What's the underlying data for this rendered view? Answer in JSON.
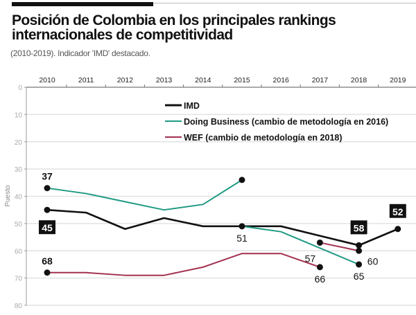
{
  "chart_data": {
    "type": "line",
    "title": "Posición de Colombia en los principales rankings internacionales de competitividad",
    "subtitle": "(2010-2019). Indicador 'IMD' destacado.",
    "ylabel": "Puesto",
    "xlabel": "",
    "x": [
      2010,
      2011,
      2012,
      2013,
      2014,
      2015,
      2016,
      2017,
      2018,
      2019
    ],
    "x_tick_labels": [
      "2010",
      "2011",
      "2012",
      "2013",
      "2014",
      "2015",
      "2016",
      "2017",
      "2018",
      "2019"
    ],
    "ylim": [
      0,
      80
    ],
    "y_inverted": true,
    "y_ticks": [
      0,
      10,
      20,
      30,
      40,
      50,
      60,
      70,
      80
    ],
    "y_tick_labels": [
      "0",
      "10",
      "20",
      "30",
      "40",
      "50",
      "60",
      "70",
      "80"
    ],
    "x_axis_position": "top",
    "grid": true,
    "legend_placement": "top-center",
    "series": [
      {
        "name": "IMD",
        "color": "#111111",
        "segments": [
          {
            "x": [
              2010,
              2011,
              2012,
              2013,
              2014,
              2015,
              2016,
              2017,
              2018,
              2019
            ],
            "values": [
              45,
              46,
              52,
              48,
              51,
              51,
              51,
              54.5,
              58,
              52
            ]
          }
        ]
      },
      {
        "name": "Doing Business (cambio de metodología en 2016)",
        "color": "#1f9a82",
        "segments": [
          {
            "x": [
              2010,
              2011,
              2012,
              2013,
              2014,
              2015
            ],
            "values": [
              37,
              39,
              42,
              45,
              43,
              34
            ]
          },
          {
            "x": [
              2015,
              2016,
              2017,
              2018
            ],
            "values": [
              51,
              53,
              59,
              65
            ]
          }
        ]
      },
      {
        "name": "WEF (cambio de metodología en 2018)",
        "color": "#a3304f",
        "segments": [
          {
            "x": [
              2010,
              2011,
              2012,
              2013,
              2014,
              2015,
              2016,
              2017
            ],
            "values": [
              68,
              68,
              69,
              69,
              66,
              61,
              61,
              66
            ]
          },
          {
            "x": [
              2017,
              2018
            ],
            "values": [
              57,
              60
            ]
          }
        ]
      }
    ],
    "markers": [
      {
        "x": 2010,
        "value": 37
      },
      {
        "x": 2010,
        "value": 45
      },
      {
        "x": 2010,
        "value": 68
      },
      {
        "x": 2015,
        "value": 34
      },
      {
        "x": 2015,
        "value": 51
      },
      {
        "x": 2017,
        "value": 57
      },
      {
        "x": 2017,
        "value": 66
      },
      {
        "x": 2018,
        "value": 58
      },
      {
        "x": 2018,
        "value": 60
      },
      {
        "x": 2018,
        "value": 65
      },
      {
        "x": 2019,
        "value": 52
      }
    ],
    "annotations": [
      {
        "x": 2010,
        "value": 37,
        "label": "37",
        "boxed": false,
        "side": "above"
      },
      {
        "x": 2010,
        "value": 45,
        "label": "45",
        "boxed": true,
        "side": "below"
      },
      {
        "x": 2010,
        "value": 68,
        "label": "68",
        "boxed": false,
        "side": "above"
      },
      {
        "x": 2015,
        "value": 51,
        "label": "51",
        "boxed": false,
        "side": "below"
      },
      {
        "x": 2017,
        "value": 57,
        "label": "57",
        "boxed": false,
        "side": "below-left"
      },
      {
        "x": 2017,
        "value": 66,
        "label": "66",
        "boxed": false,
        "side": "below"
      },
      {
        "x": 2018,
        "value": 58,
        "label": "58",
        "boxed": true,
        "side": "above"
      },
      {
        "x": 2018,
        "value": 60,
        "label": "60",
        "boxed": false,
        "side": "right"
      },
      {
        "x": 2018,
        "value": 65,
        "label": "65",
        "boxed": false,
        "side": "below"
      },
      {
        "x": 2019,
        "value": 52,
        "label": "52",
        "boxed": true,
        "side": "above"
      }
    ]
  }
}
